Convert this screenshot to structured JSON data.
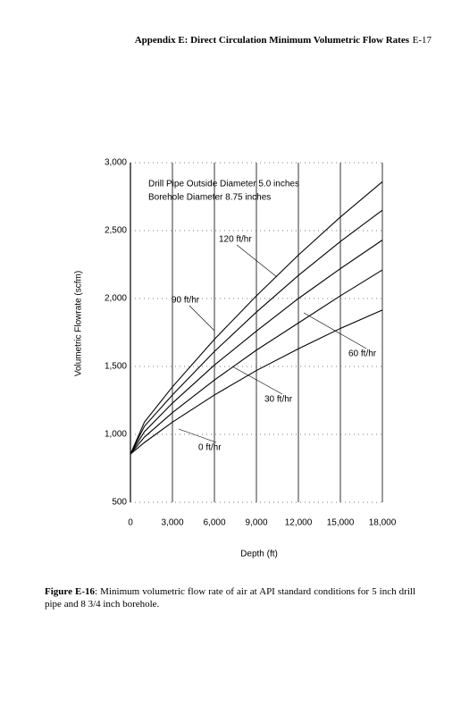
{
  "header": {
    "title": "Appendix E: Direct Circulation Minimum Volumetric Flow Rates",
    "page": "E-17"
  },
  "chart_data": {
    "type": "line",
    "annotations": [
      "Drill Pipe Outside Diameter 5.0 inches",
      "Borehole Diameter 8.75 inches"
    ],
    "x_label": "Depth (ft)",
    "y_label": "Volumetric Flowrate (scfm)",
    "x": [
      0,
      1000,
      3000,
      6000,
      9000,
      12000,
      15000,
      18000
    ],
    "series": [
      {
        "name": "120 ft/hr",
        "color": "#000000",
        "values": [
          855,
          1090,
          1350,
          1700,
          2020,
          2320,
          2600,
          2860
        ]
      },
      {
        "name": "90 ft/hr",
        "color": "#000000",
        "values": [
          855,
          1060,
          1290,
          1610,
          1900,
          2170,
          2420,
          2650
        ]
      },
      {
        "name": "60 ft/hr",
        "color": "#000000",
        "values": [
          855,
          1020,
          1230,
          1510,
          1760,
          2000,
          2220,
          2430
        ]
      },
      {
        "name": "30 ft/hr",
        "color": "#000000",
        "values": [
          855,
          980,
          1160,
          1400,
          1620,
          1820,
          2020,
          2210
        ]
      },
      {
        "name": "0 ft/hr",
        "color": "#000000",
        "values": [
          855,
          940,
          1090,
          1290,
          1470,
          1630,
          1780,
          1915
        ]
      }
    ],
    "xlim": [
      0,
      18000
    ],
    "xticks": [
      0,
      {
        "value": 3000,
        "label": "3,000"
      },
      {
        "value": 6000,
        "label": "6,000"
      },
      {
        "value": 9000,
        "label": "9,000"
      },
      {
        "value": 12000,
        "label": "12,000"
      },
      {
        "value": 15000,
        "label": "15,000"
      },
      {
        "value": 18000,
        "label": "18,000"
      }
    ],
    "ylim": [
      500,
      3000
    ],
    "yticks": [
      500,
      {
        "value": 1000,
        "label": "1,000"
      },
      {
        "value": 1500,
        "label": "1,500"
      },
      {
        "value": 2000,
        "label": "2,000"
      },
      {
        "value": 2500,
        "label": "2,500"
      },
      {
        "value": 3000,
        "label": "3,000"
      }
    ],
    "grid": true
  },
  "caption": {
    "label": "Figure E-16",
    "text": ": Minimum volumetric flow rate of air at API standard conditions  for 5 inch drill pipe and 8 3/4 inch borehole."
  }
}
